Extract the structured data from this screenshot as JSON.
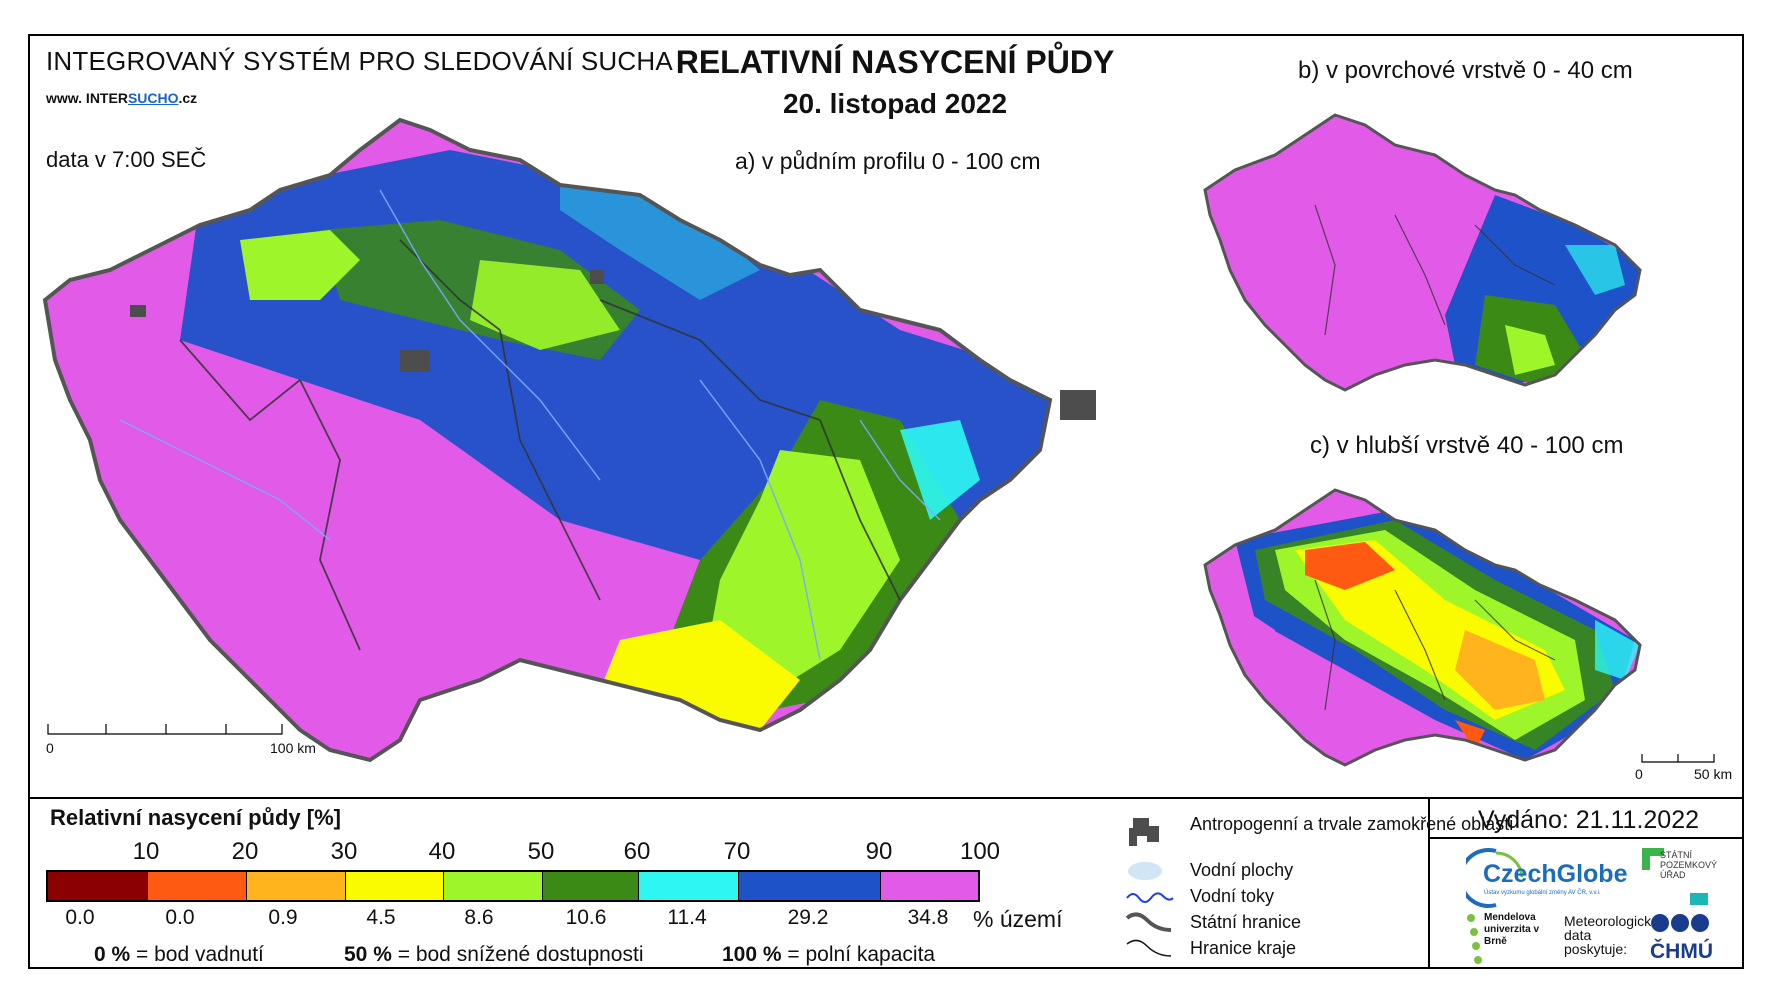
{
  "header": {
    "system_title": "INTEGROVANÝ SYSTÉM PRO SLEDOVÁNÍ SUCHA",
    "website_prefix": "www. INTER",
    "website_highlight": "SUCHO",
    "website_suffix": ".cz",
    "data_time": "data v 7:00 SEČ",
    "title": "RELATIVNÍ NASYCENÍ PŮDY",
    "date": "20. listopad 2022"
  },
  "maps": {
    "a_label": "a) v půdním profilu 0 - 100 cm",
    "b_label": "b) v povrchové vrstvě 0 - 40 cm",
    "c_label": "c) v hlubší vrstvě 40 - 100 cm",
    "scale_main": {
      "start": "0",
      "end": "100 km"
    },
    "scale_small": {
      "start": "0",
      "end": "50 km"
    }
  },
  "legend": {
    "title": "Relativní nasycení půdy [%]",
    "ticks": [
      "10",
      "20",
      "30",
      "40",
      "50",
      "60",
      "70",
      "90",
      "100"
    ],
    "colors": [
      "#8b0000",
      "#ff5a12",
      "#ffb41e",
      "#fbfb00",
      "#9ef62a",
      "#3a8a15",
      "#2ef7f2",
      "#1e52c8",
      "#e25be8"
    ],
    "percentages": [
      "0.0",
      "0.0",
      "0.9",
      "4.5",
      "8.6",
      "10.6",
      "11.4",
      "29.2",
      "34.8"
    ],
    "percent_unit": "% území",
    "notes": [
      {
        "value": "0 %",
        "text": "= bod vadnutí"
      },
      {
        "value": "50 %",
        "text": "= bod snížené dostupnosti"
      },
      {
        "value": "100 %",
        "text": "= polní kapacita"
      }
    ]
  },
  "symbols": [
    {
      "icon": "urban-area-icon",
      "label": "Antropogenní a trvale zamokřené oblasti"
    },
    {
      "icon": "water-body-icon",
      "label": "Vodní plochy"
    },
    {
      "icon": "river-icon",
      "label": "Vodní toky"
    },
    {
      "icon": "state-border-icon",
      "label": "Státní hranice"
    },
    {
      "icon": "region-border-icon",
      "label": "Hranice kraje"
    }
  ],
  "footer": {
    "issued": "Vydáno: 21.11.2022",
    "czechglobe": "CzechGlobe",
    "czechglobe_sub": "Ústav výzkumu globální změny AV ČR, v.v.i.",
    "spu": "STÁTNÍ POZEMKOVÝ ÚŘAD",
    "mendelu": "Mendelova univerzita v Brně",
    "meteo": "Meteorologická data poskytuje:",
    "chmu": "ČHMÚ"
  }
}
